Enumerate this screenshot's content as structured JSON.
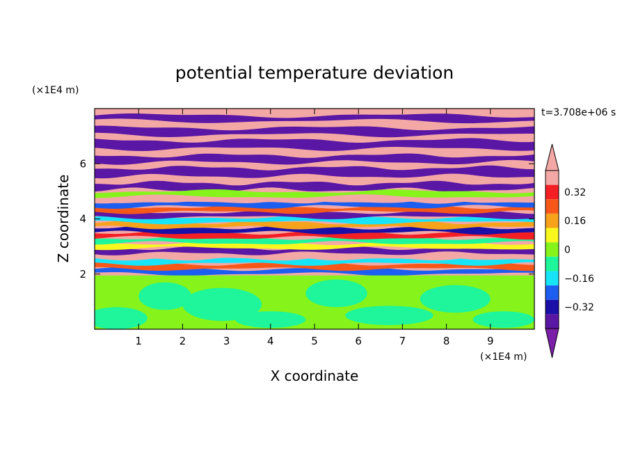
{
  "chart_data": {
    "type": "heatmap",
    "title": "potential temperature deviation",
    "xlabel": "X coordinate",
    "ylabel": "Z coordinate",
    "x_unit": "(×1E4 m)",
    "y_unit": "(×1E4 m)",
    "time_label": "t=3.708e+06 s",
    "xlim": [
      0,
      10
    ],
    "ylim": [
      0,
      8
    ],
    "x_ticks": [
      "1",
      "2",
      "3",
      "4",
      "5",
      "6",
      "7",
      "8",
      "9"
    ],
    "y_ticks": [
      "2",
      "4",
      "6"
    ],
    "colorbar": {
      "levels": [
        -0.48,
        -0.4,
        -0.32,
        -0.24,
        -0.16,
        -0.08,
        0,
        0.08,
        0.16,
        0.24,
        0.32,
        0.4,
        0.48
      ],
      "labels": [
        "0.32",
        "0.16",
        "0",
        "−0.16",
        "−0.32"
      ],
      "colors": [
        "#5a16a4",
        "#1a0fa6",
        "#1c5ef0",
        "#18e4f8",
        "#1ff59a",
        "#86f31b",
        "#f8f81e",
        "#f7a21b",
        "#f7581a",
        "#f31f25",
        "#f4a8a6"
      ],
      "under_color": "#7b1fa8",
      "over_color": "#f4a8a6"
    },
    "layers": [
      {
        "z_range": [
          0,
          2
        ],
        "description_values": "mostly near 0 (-0.08 to 0.08)"
      },
      {
        "z_range": [
          2,
          5
        ],
        "description_values": "alternating layers spanning -0.48 to 0.48"
      },
      {
        "z_range": [
          5,
          8
        ],
        "description_values": "alternating bands near -0.48 and 0.48"
      }
    ]
  }
}
